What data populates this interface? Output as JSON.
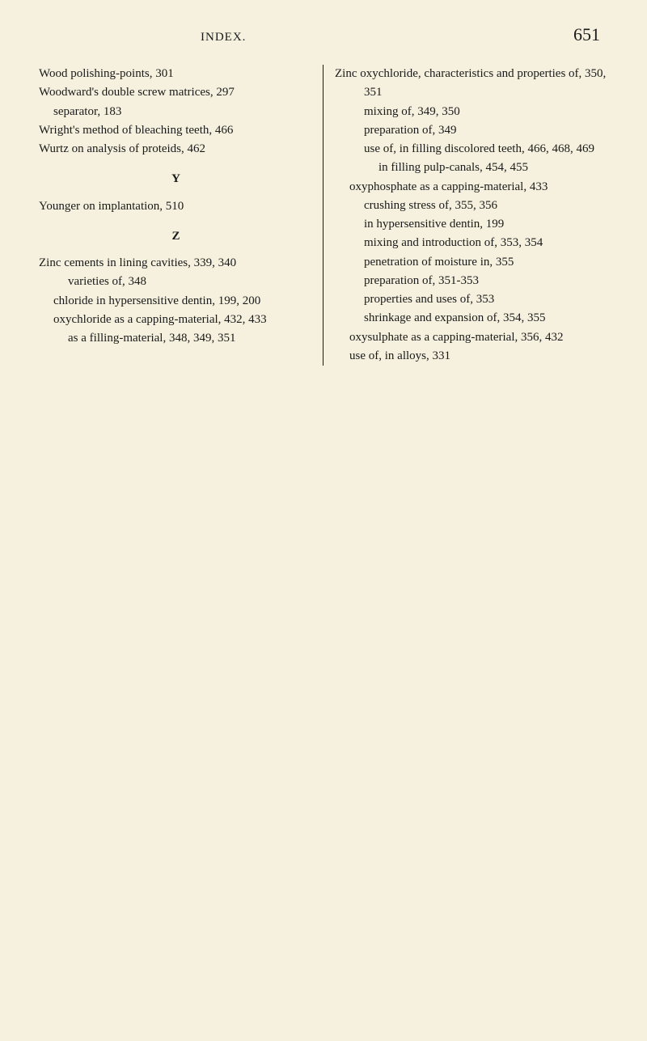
{
  "header": {
    "title": "INDEX.",
    "page_number": "651"
  },
  "left_column": {
    "entries": [
      {
        "text": "Wood polishing-points, 301",
        "level": 0
      },
      {
        "text": "Woodward's double screw matrices, 297",
        "level": 0
      },
      {
        "text": "separator, 183",
        "level": 1
      },
      {
        "text": "Wright's method of bleaching teeth, 466",
        "level": 0
      },
      {
        "text": "Wurtz on analysis of proteids, 462",
        "level": 0
      }
    ],
    "section_y": "Y",
    "y_entries": [
      {
        "text": "Younger on implantation, 510",
        "level": 0
      }
    ],
    "section_z": "Z",
    "z_entries": [
      {
        "text": "Zinc cements in lining cavities, 339, 340",
        "level": 0
      },
      {
        "text": "varieties of, 348",
        "level": 2
      },
      {
        "text": "chloride in hypersensitive dentin, 199, 200",
        "level": 1
      },
      {
        "text": "oxychloride as a capping-material, 432, 433",
        "level": 1
      },
      {
        "text": "as a filling-material, 348, 349, 351",
        "level": 2
      }
    ]
  },
  "right_column": {
    "entries": [
      {
        "text": "Zinc oxychloride, characteristics and properties of, 350, 351",
        "level": 0
      },
      {
        "text": "mixing of, 349, 350",
        "level": 2
      },
      {
        "text": "preparation of, 349",
        "level": 2
      },
      {
        "text": "use of, in filling discolored teeth, 466, 468, 469",
        "level": 2
      },
      {
        "text": "in filling pulp-canals, 454, 455",
        "level": 3
      },
      {
        "text": "oxyphosphate as a capping-material, 433",
        "level": 1
      },
      {
        "text": "crushing stress of, 355, 356",
        "level": 2
      },
      {
        "text": "in hypersensitive dentin, 199",
        "level": 2
      },
      {
        "text": "mixing and introduction of, 353, 354",
        "level": 2
      },
      {
        "text": "penetration of moisture in, 355",
        "level": 2
      },
      {
        "text": "preparation of, 351-353",
        "level": 2
      },
      {
        "text": "properties and uses of, 353",
        "level": 2
      },
      {
        "text": "shrinkage and expansion of, 354, 355",
        "level": 2
      },
      {
        "text": "oxysulphate as a capping-material, 356, 432",
        "level": 1
      },
      {
        "text": "use of, in alloys, 331",
        "level": 1
      }
    ]
  }
}
